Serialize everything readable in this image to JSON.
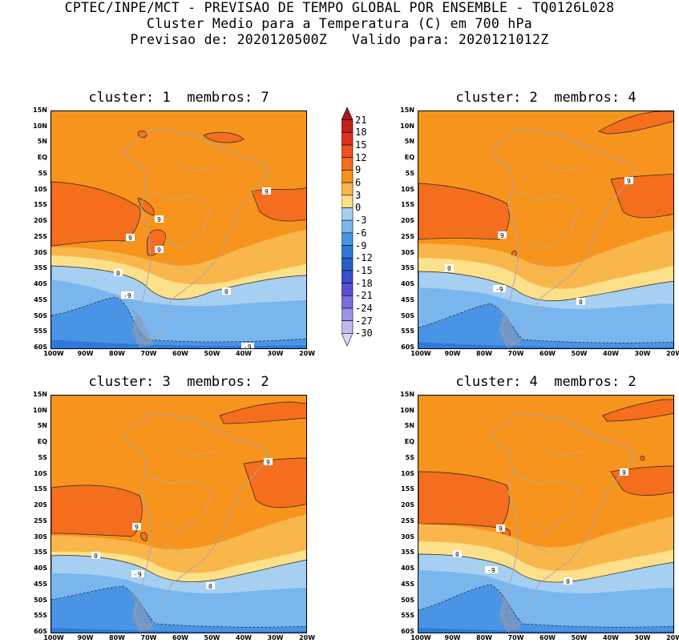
{
  "header": {
    "line1": "CPTEC/INPE/MCT - PREVISAO DE TEMPO GLOBAL POR ENSEMBLE - TQ0126L028",
    "line2": "Cluster Medio para a Temperatura (C) em 700 hPa",
    "line3": "Previsao de: 2020120500Z   Valido para: 2020121012Z"
  },
  "panels": [
    {
      "title": "cluster: 1  membros: 7"
    },
    {
      "title": "cluster: 2  membros: 4"
    },
    {
      "title": "cluster: 3  membros: 2"
    },
    {
      "title": "cluster: 4  membros: 2"
    }
  ],
  "lat_labels": [
    "15N",
    "10N",
    "5N",
    "EQ",
    "5S",
    "10S",
    "15S",
    "20S",
    "25S",
    "30S",
    "35S",
    "40S",
    "45S",
    "50S",
    "55S",
    "60S"
  ],
  "lon_labels": [
    "100W",
    "90W",
    "80W",
    "70W",
    "60W",
    "50W",
    "40W",
    "30W",
    "20W"
  ],
  "colorbar": {
    "levels": [
      "21",
      "18",
      "15",
      "12",
      "9",
      "6",
      "3",
      "0",
      "-3",
      "-6",
      "-9",
      "-12",
      "-15",
      "-18",
      "-21",
      "-24",
      "-27",
      "-30"
    ],
    "colors": [
      "#a01c1c",
      "#c42020",
      "#e0301e",
      "#f0501e",
      "#f46e1e",
      "#f7941d",
      "#f9b64b",
      "#fde08a",
      "#a6cff2",
      "#7ab6ee",
      "#4a94e6",
      "#2f78d8",
      "#2660c6",
      "#3a4ecb",
      "#5750d2",
      "#7a6edd",
      "#9c92e6",
      "#c1b8ef",
      "#dcd6f5"
    ]
  },
  "contour_labels": {
    "p1": [
      "9",
      "9",
      "9",
      "9",
      "0",
      "0",
      "-9",
      "-9"
    ],
    "p2": [
      "9",
      "9",
      "0",
      "0",
      "-9"
    ],
    "p3": [
      "9",
      "9",
      "0",
      "0",
      "-9"
    ],
    "p4": [
      "9",
      "9",
      "0",
      "0",
      "-9"
    ]
  }
}
